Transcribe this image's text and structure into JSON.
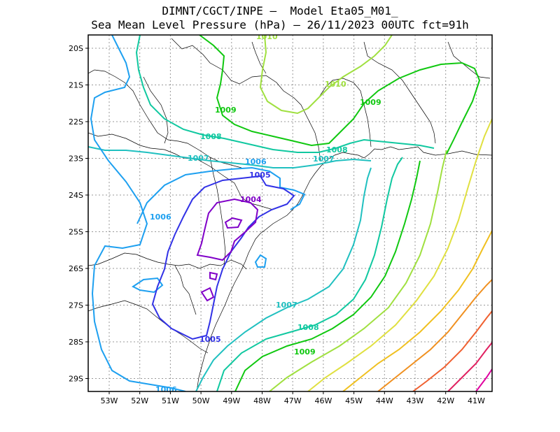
{
  "title": {
    "line1": "DIMNT/CGCT/INPE —  Model Eta05_M01_",
    "line2": "Sea Mean Level Pressure (hPa) — 26/11/2023 00UTC fct=91h"
  },
  "axes": {
    "lat_labels": [
      "20S",
      "21S",
      "22S",
      "23S",
      "24S",
      "25S",
      "26S",
      "27S",
      "28S",
      "29S"
    ],
    "lon_labels": [
      "53W",
      "52W",
      "51W",
      "50W",
      "49W",
      "48W",
      "47W",
      "46W",
      "45W",
      "44W",
      "43W",
      "42W",
      "41W"
    ]
  },
  "colors": {
    "c1004": "#8000c8",
    "c1005": "#3232e6",
    "c1006": "#1ea0f0",
    "c1007": "#20c0c0",
    "c1008": "#10c8a0",
    "c1009": "#10c810",
    "c1010": "#a0e040",
    "c1011": "#e0e040",
    "c1012": "#f0c020",
    "c1013": "#f09020",
    "c1014": "#f06030",
    "c1015": "#e02060",
    "c1016": "#e000a0",
    "coast": "#000000"
  },
  "contour_labels": [
    {
      "id": "l1010a",
      "text": "1010"
    },
    {
      "id": "l1010b",
      "text": "1010"
    },
    {
      "id": "l1009a",
      "text": "1009"
    },
    {
      "id": "l1009b",
      "text": "1009"
    },
    {
      "id": "l1009c",
      "text": "1009"
    },
    {
      "id": "l1008a",
      "text": "1008"
    },
    {
      "id": "l1008b",
      "text": "1008"
    },
    {
      "id": "l1008c",
      "text": "1008"
    },
    {
      "id": "l1007a",
      "text": "1007"
    },
    {
      "id": "l1007b",
      "text": "1007"
    },
    {
      "id": "l1007c",
      "text": "1007"
    },
    {
      "id": "l1006a",
      "text": "1006"
    },
    {
      "id": "l1006b",
      "text": "1006"
    },
    {
      "id": "l1006c",
      "text": "1006"
    },
    {
      "id": "l1005a",
      "text": "1005"
    },
    {
      "id": "l1005b",
      "text": "1005"
    },
    {
      "id": "l1004a",
      "text": "1004"
    }
  ]
}
